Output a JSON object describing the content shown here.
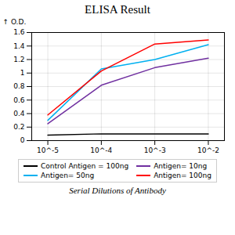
{
  "chart_data": {
    "type": "line",
    "title": "ELISA Result",
    "xlabel": "Serial Dilutions of Antibody",
    "ylabel": "O.D.",
    "x": [
      0.01,
      0.001,
      0.0001,
      1e-05
    ],
    "series": [
      {
        "name": "Control Antigen = 100ng",
        "color": "#000000",
        "values": [
          0.1,
          0.1,
          0.1,
          0.08
        ]
      },
      {
        "name": "Antigen= 10ng",
        "color": "#7030a0",
        "values": [
          1.22,
          1.08,
          0.82,
          0.25
        ]
      },
      {
        "name": "Antigen= 50ng",
        "color": "#00b0f0",
        "values": [
          1.42,
          1.2,
          1.06,
          0.3
        ]
      },
      {
        "name": "Antigen= 100ng",
        "color": "#ff0000",
        "values": [
          1.49,
          1.43,
          1.03,
          0.38
        ]
      }
    ],
    "xlim": [
      5e-06,
      0.02
    ],
    "ylim": [
      0,
      1.6
    ],
    "xticks": [
      {
        "value": 0.01,
        "label": "10^-2"
      },
      {
        "value": 0.001,
        "label": "10^-3"
      },
      {
        "value": 0.0001,
        "label": "10^-4"
      },
      {
        "value": 1e-05,
        "label": "10^-5"
      }
    ],
    "yticks": [
      0,
      0.2,
      0.4,
      0.6,
      0.8,
      1,
      1.2,
      1.4,
      1.6
    ],
    "log": "x",
    "grid": true,
    "legend": "bottom"
  }
}
